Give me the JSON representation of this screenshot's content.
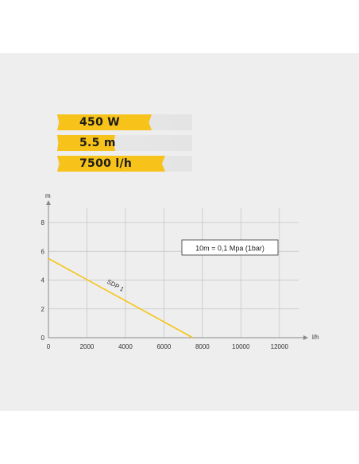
{
  "specs": [
    {
      "label": "450 W",
      "fill": 0.7
    },
    {
      "label": "5.5 m",
      "fill": 0.43
    },
    {
      "label": "7500 l/h",
      "fill": 0.8
    }
  ],
  "colors": {
    "accent": "#f7c21a",
    "series": "#f5c518",
    "grid": "#c8c8c8",
    "axis": "#8a8a8a",
    "background": "#eeeeee"
  },
  "chart_data": {
    "type": "line",
    "xlabel": "l/h",
    "ylabel": "m",
    "xlim": [
      0,
      13000
    ],
    "ylim": [
      0,
      9
    ],
    "xticks": [
      0,
      2000,
      4000,
      6000,
      8000,
      10000,
      12000
    ],
    "yticks": [
      0,
      2,
      4,
      6,
      8
    ],
    "grid": true,
    "annotation": "10m = 0,1 Mpa (1bar)",
    "series": [
      {
        "name": "SDP 1",
        "x": [
          0,
          7500
        ],
        "y": [
          5.5,
          0
        ]
      }
    ]
  }
}
